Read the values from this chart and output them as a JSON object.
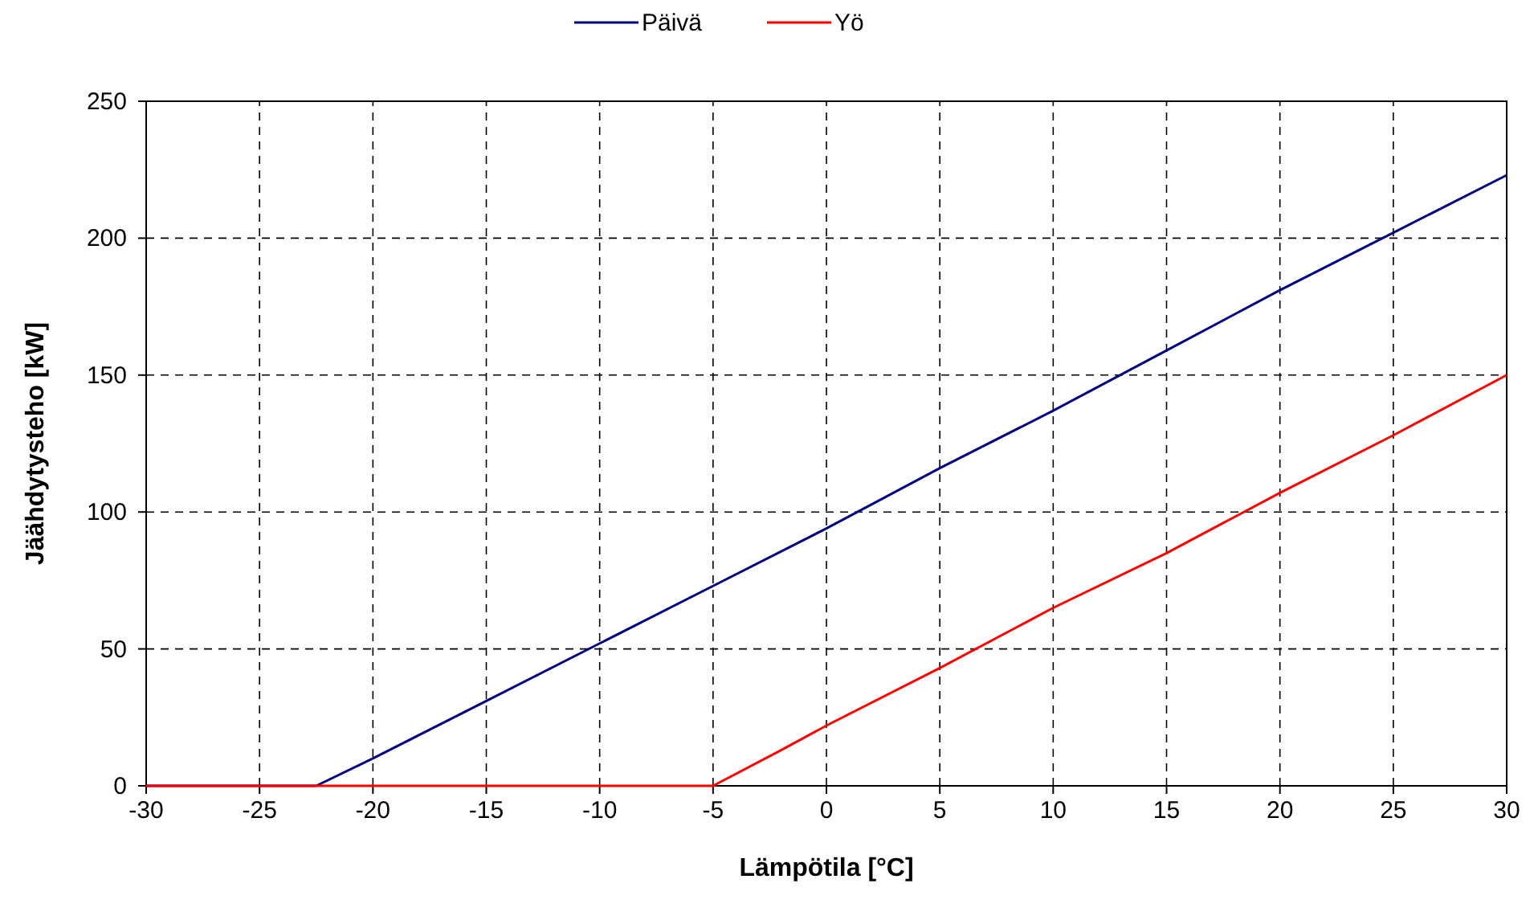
{
  "chart_data": {
    "type": "line",
    "xlabel": "Lämpötila [°C]",
    "ylabel": "Jäähdytysteho [kW]",
    "series": [
      {
        "name": "Päivä",
        "color": "#000080",
        "x": [
          -30,
          -22.5,
          -20,
          -15,
          -10,
          -5,
          0,
          5,
          10,
          15,
          20,
          25,
          30
        ],
        "values": [
          0,
          0,
          10,
          31,
          52,
          73,
          94,
          116,
          137,
          159,
          181,
          202,
          223
        ]
      },
      {
        "name": "Yö",
        "color": "#ff0000",
        "x": [
          -30,
          -5,
          -2,
          0,
          5,
          10,
          15,
          20,
          25,
          30
        ],
        "values": [
          0,
          0,
          13,
          22,
          43,
          65,
          85,
          107,
          128,
          150
        ]
      }
    ],
    "xlim": [
      -30,
      30
    ],
    "xticks": [
      -30,
      -25,
      -20,
      -15,
      -10,
      -5,
      0,
      5,
      10,
      15,
      20,
      25,
      30
    ],
    "ylim": [
      0,
      250
    ],
    "yticks": [
      0,
      50,
      100,
      150,
      200,
      250
    ],
    "grid": true,
    "legend": "top",
    "line_style": "solid"
  }
}
